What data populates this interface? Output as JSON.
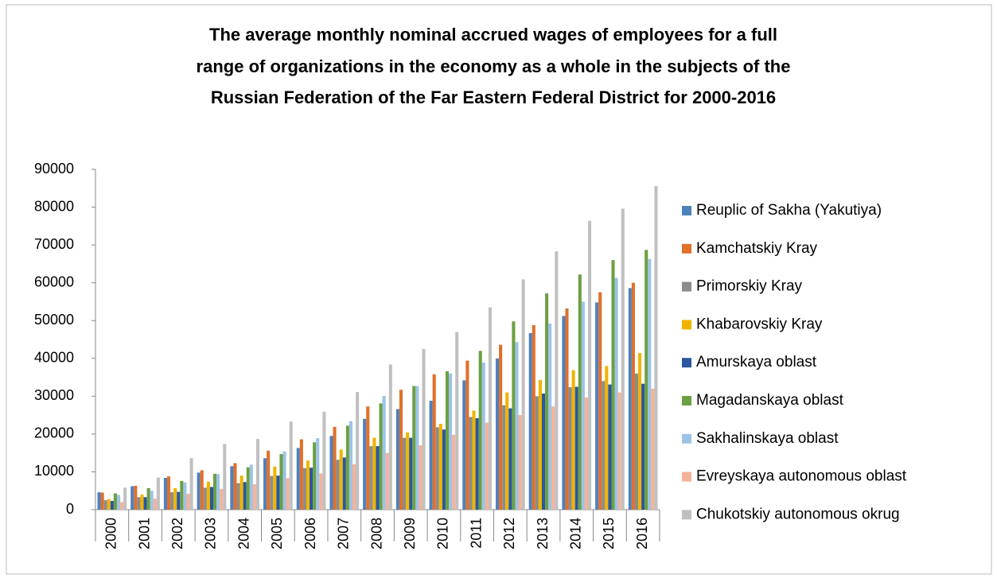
{
  "chart_data": {
    "type": "bar",
    "title": "The average monthly nominal accrued wages of employees for a full range of organizations in the economy as a whole in the subjects of the Russian Federation of the Far Eastern Federal District for 2000-2016",
    "title_lines": [
      "The average monthly nominal accrued wages of employees for a full",
      "range of organizations in the economy as a whole in the subjects of the",
      "Russian Federation of the Far Eastern Federal District for 2000-2016"
    ],
    "categories": [
      "2000",
      "2001",
      "2002",
      "2003",
      "2004",
      "2005",
      "2006",
      "2007",
      "2008",
      "2009",
      "2010",
      "2011",
      "2012",
      "2013",
      "2014",
      "2015",
      "2016"
    ],
    "series": [
      {
        "name": "Reuplic of Sakha (Yakutiya)",
        "color": "#4f81bd",
        "values": [
          4600,
          6200,
          8400,
          9800,
          11500,
          13600,
          16300,
          19500,
          24000,
          26600,
          28800,
          34200,
          40000,
          46700,
          51200,
          54800,
          58600
        ]
      },
      {
        "name": "Kamchatskiy Kray",
        "color": "#e0702a",
        "values": [
          4500,
          6300,
          8800,
          10400,
          12300,
          15600,
          18600,
          21900,
          27300,
          31700,
          35800,
          39400,
          43600,
          48800,
          53200,
          57500,
          60000
        ]
      },
      {
        "name": "Primorskiy Kray",
        "color": "#8c8c8c",
        "values": [
          2500,
          3300,
          4600,
          5800,
          7000,
          8900,
          11000,
          13200,
          16800,
          19000,
          21800,
          24500,
          27600,
          30000,
          32400,
          34000,
          36000
        ]
      },
      {
        "name": "Khabarovskiy Kray",
        "color": "#f0b400",
        "values": [
          2800,
          4000,
          5700,
          7400,
          9000,
          11400,
          13000,
          15900,
          19000,
          20400,
          22700,
          26200,
          31000,
          34300,
          36900,
          38000,
          41400
        ]
      },
      {
        "name": "Amurskaya oblast",
        "color": "#2a57a0",
        "values": [
          2300,
          3300,
          4700,
          6000,
          7300,
          9000,
          11100,
          13800,
          16800,
          19000,
          21200,
          24200,
          26800,
          30700,
          32500,
          33100,
          33300
        ]
      },
      {
        "name": "Magadanskaya oblast",
        "color": "#6ca043",
        "values": [
          4300,
          5700,
          7600,
          9500,
          11200,
          14700,
          17800,
          22200,
          28100,
          32700,
          36600,
          42000,
          49800,
          57200,
          62200,
          66000,
          68700
        ]
      },
      {
        "name": "Sakhalinskaya oblast",
        "color": "#9dc3e6",
        "values": [
          3900,
          5000,
          7200,
          9400,
          11900,
          15400,
          18900,
          23400,
          30100,
          32700,
          36000,
          38900,
          44300,
          49200,
          55000,
          61300,
          66300
        ]
      },
      {
        "name": "Evreyskaya autonomous oblast",
        "color": "#f4b39a",
        "values": [
          2000,
          2900,
          4200,
          5500,
          6700,
          8300,
          9600,
          12000,
          15000,
          17000,
          19800,
          23000,
          25000,
          27300,
          29700,
          31000,
          32000
        ]
      },
      {
        "name": "Chukotskiy autonomous okrug",
        "color": "#c0c0c0",
        "values": [
          5800,
          8500,
          13600,
          17400,
          18700,
          23300,
          25900,
          31100,
          38400,
          42500,
          47000,
          53500,
          60900,
          68300,
          76400,
          79600,
          85600
        ]
      }
    ],
    "ylim": [
      0,
      90000
    ],
    "yticks": [
      0,
      10000,
      20000,
      30000,
      40000,
      50000,
      60000,
      70000,
      80000,
      90000
    ],
    "grid": false,
    "legend": "right"
  }
}
